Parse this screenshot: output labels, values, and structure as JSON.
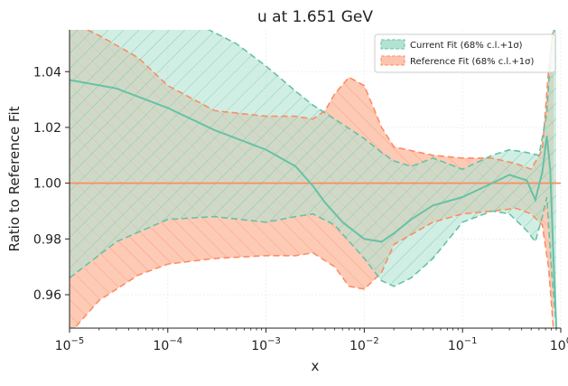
{
  "chart_data": {
    "type": "line",
    "title": "u at 1.651 GeV",
    "xlabel": "x",
    "ylabel": "Ratio to Reference Fit",
    "xscale": "log",
    "xlim": [
      1e-05,
      1.0
    ],
    "ylim": [
      0.948,
      1.055
    ],
    "x_ticks": [
      {
        "value": 1e-05,
        "label": "10",
        "exp": "−5"
      },
      {
        "value": 0.0001,
        "label": "10",
        "exp": "−4"
      },
      {
        "value": 0.001,
        "label": "10",
        "exp": "−3"
      },
      {
        "value": 0.01,
        "label": "10",
        "exp": "−2"
      },
      {
        "value": 0.1,
        "label": "10",
        "exp": "−1"
      },
      {
        "value": 1.0,
        "label": "10",
        "exp": "0"
      }
    ],
    "y_ticks": [
      0.96,
      0.98,
      1.0,
      1.02,
      1.04
    ],
    "y_tick_labels": [
      "0.96",
      "0.98",
      "1.00",
      "1.02",
      "1.04"
    ],
    "grid": true,
    "legend_position": "top-right",
    "colors": {
      "current": "#66c2a5",
      "current_fill": "#b2e2d2",
      "reference": "#fc8d62",
      "reference_fill": "#fdc4ae"
    },
    "series": [
      {
        "name": "Current Fit (68% c.l.+1σ)",
        "central": [
          [
            1e-05,
            1.037
          ],
          [
            3e-05,
            1.034
          ],
          [
            0.0001,
            1.027
          ],
          [
            0.0003,
            1.019
          ],
          [
            0.001,
            1.012
          ],
          [
            0.002,
            1.006
          ],
          [
            0.003,
            0.999
          ],
          [
            0.004,
            0.993
          ],
          [
            0.006,
            0.986
          ],
          [
            0.01,
            0.98
          ],
          [
            0.015,
            0.979
          ],
          [
            0.02,
            0.982
          ],
          [
            0.03,
            0.987
          ],
          [
            0.05,
            0.992
          ],
          [
            0.1,
            0.995
          ],
          [
            0.2,
            1.0
          ],
          [
            0.3,
            1.003
          ],
          [
            0.45,
            1.001
          ],
          [
            0.55,
            0.994
          ],
          [
            0.65,
            1.004
          ],
          [
            0.72,
            1.017
          ],
          [
            0.78,
            1.005
          ],
          [
            0.85,
            0.97
          ],
          [
            0.92,
            0.94
          ]
        ],
        "upper": [
          [
            1e-05,
            1.058
          ],
          [
            0.0001,
            1.058
          ],
          [
            0.0002,
            1.057
          ],
          [
            0.0003,
            1.054
          ],
          [
            0.0005,
            1.05
          ],
          [
            0.001,
            1.042
          ],
          [
            0.002,
            1.033
          ],
          [
            0.003,
            1.028
          ],
          [
            0.005,
            1.023
          ],
          [
            0.01,
            1.016
          ],
          [
            0.015,
            1.011
          ],
          [
            0.02,
            1.008
          ],
          [
            0.03,
            1.006
          ],
          [
            0.05,
            1.009
          ],
          [
            0.1,
            1.005
          ],
          [
            0.2,
            1.01
          ],
          [
            0.3,
            1.012
          ],
          [
            0.45,
            1.011
          ],
          [
            0.6,
            1.01
          ],
          [
            0.72,
            1.025
          ],
          [
            0.8,
            1.05
          ],
          [
            0.9,
            1.058
          ]
        ],
        "lower": [
          [
            1e-05,
            0.966
          ],
          [
            3e-05,
            0.979
          ],
          [
            0.0001,
            0.987
          ],
          [
            0.0003,
            0.988
          ],
          [
            0.001,
            0.986
          ],
          [
            0.002,
            0.988
          ],
          [
            0.003,
            0.989
          ],
          [
            0.005,
            0.985
          ],
          [
            0.01,
            0.973
          ],
          [
            0.015,
            0.965
          ],
          [
            0.02,
            0.963
          ],
          [
            0.03,
            0.966
          ],
          [
            0.05,
            0.973
          ],
          [
            0.1,
            0.986
          ],
          [
            0.2,
            0.99
          ],
          [
            0.3,
            0.989
          ],
          [
            0.45,
            0.983
          ],
          [
            0.55,
            0.979
          ],
          [
            0.65,
            0.988
          ],
          [
            0.72,
            0.995
          ],
          [
            0.8,
            0.97
          ],
          [
            0.9,
            0.948
          ]
        ]
      },
      {
        "name": "Reference Fit (68% c.l.+1σ)",
        "central": [
          [
            1e-05,
            1.0
          ],
          [
            1.0,
            1.0
          ]
        ],
        "upper": [
          [
            1e-05,
            1.058
          ],
          [
            2e-05,
            1.053
          ],
          [
            5e-05,
            1.045
          ],
          [
            0.0001,
            1.035
          ],
          [
            0.0003,
            1.026
          ],
          [
            0.001,
            1.024
          ],
          [
            0.002,
            1.024
          ],
          [
            0.003,
            1.023
          ],
          [
            0.004,
            1.026
          ],
          [
            0.005,
            1.032
          ],
          [
            0.007,
            1.038
          ],
          [
            0.01,
            1.035
          ],
          [
            0.015,
            1.02
          ],
          [
            0.02,
            1.013
          ],
          [
            0.05,
            1.01
          ],
          [
            0.1,
            1.009
          ],
          [
            0.2,
            1.009
          ],
          [
            0.35,
            1.007
          ],
          [
            0.5,
            1.005
          ],
          [
            0.65,
            1.012
          ],
          [
            0.75,
            1.04
          ],
          [
            0.85,
            1.058
          ]
        ],
        "lower": [
          [
            1e-05,
            0.946
          ],
          [
            2e-05,
            0.958
          ],
          [
            5e-05,
            0.967
          ],
          [
            0.0001,
            0.971
          ],
          [
            0.0003,
            0.973
          ],
          [
            0.001,
            0.974
          ],
          [
            0.002,
            0.974
          ],
          [
            0.003,
            0.975
          ],
          [
            0.005,
            0.97
          ],
          [
            0.007,
            0.963
          ],
          [
            0.01,
            0.962
          ],
          [
            0.015,
            0.968
          ],
          [
            0.02,
            0.978
          ],
          [
            0.05,
            0.986
          ],
          [
            0.1,
            0.989
          ],
          [
            0.2,
            0.99
          ],
          [
            0.35,
            0.991
          ],
          [
            0.5,
            0.989
          ],
          [
            0.65,
            0.985
          ],
          [
            0.75,
            0.97
          ],
          [
            0.85,
            0.946
          ]
        ]
      }
    ]
  }
}
